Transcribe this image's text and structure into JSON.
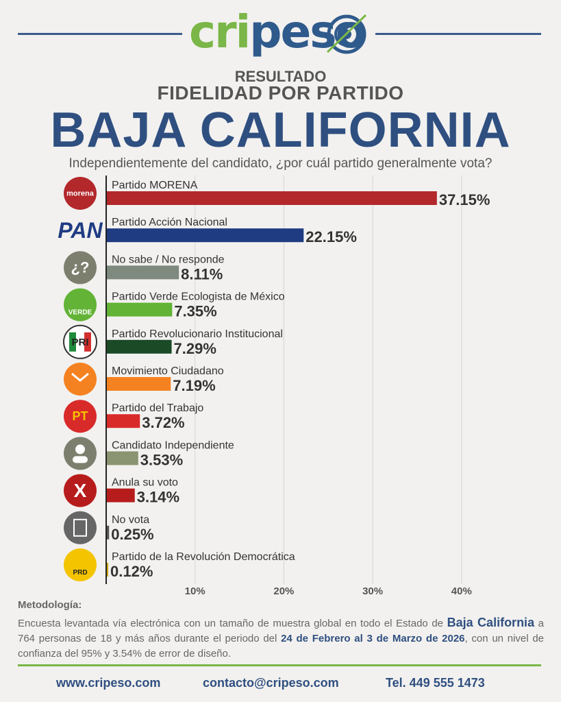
{
  "brand": {
    "logo_green": "cri",
    "logo_blue": "peso"
  },
  "colors": {
    "accent_blue": "#2f4f80",
    "accent_green": "#7ab648"
  },
  "titles": {
    "kicker": "RESULTADO",
    "subtitle": "FIDELIDAD POR PARTIDO",
    "state": "BAJA CALIFORNIA",
    "question": "Independientemente del candidato, ¿por cuál partido generalmente vota?"
  },
  "chart_data": {
    "type": "bar",
    "orientation": "horizontal",
    "categories": [
      "Partido MORENA",
      "Partido Acción Nacional",
      "No sabe / No responde",
      "Partido Verde Ecologista de México",
      "Partido Revolucionario Institucional",
      "Movimiento Ciudadano",
      "Partido del Trabajo",
      "Candidato Independiente",
      "Anula su voto",
      "No vota",
      "Partido de la Revolución Democrática"
    ],
    "values": [
      37.15,
      22.15,
      8.11,
      7.35,
      7.29,
      7.19,
      3.72,
      3.53,
      3.14,
      0.25,
      0.12
    ],
    "value_labels": [
      "37.15%",
      "22.15%",
      "8.11%",
      "7.35%",
      "7.29%",
      "7.19%",
      "3.72%",
      "3.53%",
      "3.14%",
      "0.25%",
      "0.12%"
    ],
    "colors": [
      "#b2282b",
      "#1f3b82",
      "#7f8a7f",
      "#62b336",
      "#1a4a26",
      "#f58220",
      "#d92a2a",
      "#8a9470",
      "#b71c1c",
      "#555555",
      "#c8a400"
    ],
    "icons": [
      "morena-logo-icon",
      "pan-logo-icon",
      "question-icon",
      "verde-logo-icon",
      "pri-logo-icon",
      "mc-logo-icon",
      "pt-logo-icon",
      "person-icon",
      "x-icon",
      "ballot-icon",
      "prd-logo-icon"
    ],
    "icon_labels": [
      "morena",
      "PAN",
      "¿?",
      "VERDE",
      "PRI",
      "",
      "PT",
      "",
      "X",
      "",
      "PRD"
    ],
    "xlim": [
      0,
      40
    ],
    "xticks": [
      10,
      20,
      30,
      40
    ],
    "xtick_labels": [
      "10%",
      "20%",
      "30%",
      "40%"
    ],
    "grid": true
  },
  "methodology": {
    "heading": "Metodología:",
    "p1": "Encuesta levantada vía electrónica con un tamaño de muestra global en todo el Estado de",
    "state_bold": "Baja California",
    "p2": "a 764 personas de 18 y más años durante el periodo del",
    "dates_bold": "24 de Febrero al 3 de Marzo de 2026",
    "p3": ", con un nivel de confianza del 95% y 3.54% de error de diseño."
  },
  "footer": {
    "website": "www.cripeso.com",
    "email": "contacto@cripeso.com",
    "phone": "Tel. 449 555 1473"
  }
}
